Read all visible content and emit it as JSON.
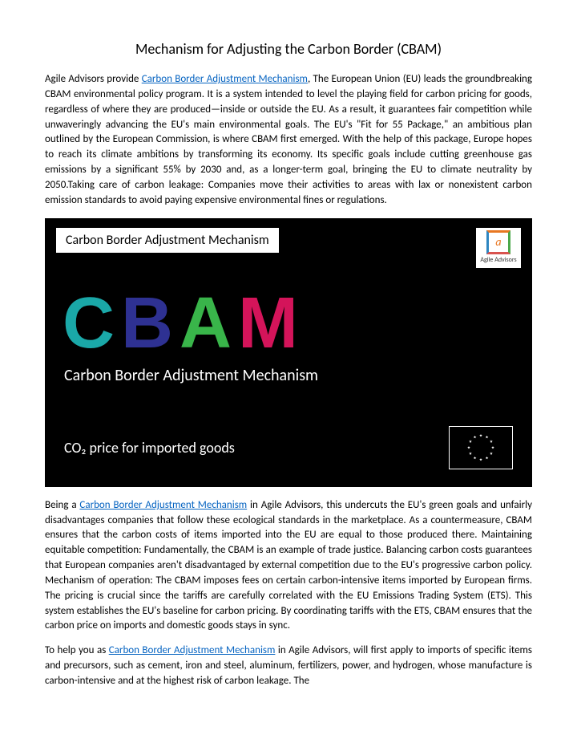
{
  "title": "Mechanism for Adjusting the Carbon Border (CBAM)",
  "link_text": "Carbon Border Adjustment Mechanism",
  "link_color": "#0563c1",
  "para1_a": "Agile Advisors provide ",
  "para1_b": ", The European Union (EU) leads the groundbreaking CBAM environmental policy program. It is a system intended to level the playing field for carbon pricing for goods, regardless of where they are produced—inside or outside the EU. As a result, it guarantees fair competition while unwaveringly advancing the EU's main environmental goals. The EU's \"Fit for 55 Package,\" an ambitious plan outlined by the European Commission, is where CBAM first emerged. With the help of this package, Europe hopes to reach its climate ambitions by transforming its economy. Its specific goals include cutting greenhouse gas emissions by a significant 55% by 2030 and, as a longer-term goal, bringing the EU to climate neutrality by 2050.Taking care of carbon leakage: Companies move their activities to areas with lax or nonexistent carbon emission standards to avoid paying expensive environmental fines or regulations.",
  "para2_a": "Being a ",
  "para2_b": " in Agile Advisors, this undercuts the EU's green goals and unfairly disadvantages companies that follow these ecological standards in the marketplace. As a countermeasure, CBAM ensures that the carbon costs of items imported into the EU are equal to those produced there. Maintaining equitable competition: Fundamentally, the CBAM is an example of trade justice. Balancing carbon costs guarantees that European companies aren't disadvantaged by external competition due to the EU's progressive carbon policy. Mechanism of operation: The CBAM imposes fees on certain carbon-intensive items imported by European firms. The pricing is crucial since the tariffs are carefully correlated with the EU Emissions Trading System (ETS). This system establishes the EU's baseline for carbon pricing. By coordinating tariffs with the ETS, CBAM ensures that the carbon price on imports and domestic goods stays in sync.",
  "para3_a": "To help you as ",
  "para3_b": " in Agile Advisors, will first apply to imports of specific items and precursors, such as cement, iron and steel, aluminum, fertilizers, power, and hydrogen, whose manufacture is carbon-intensive and at the highest risk of carbon leakage. The",
  "banner": {
    "label": "Carbon Border Adjustment Mechanism",
    "logo_caption": "Agile Advisors",
    "letters": [
      {
        "ch": "C",
        "color": "#1aa8a8"
      },
      {
        "ch": "B",
        "color": "#2e3192"
      },
      {
        "ch": "A",
        "color": "#39b54a"
      },
      {
        "ch": "M",
        "color": "#d4145a"
      }
    ],
    "subtitle": "Carbon Border Adjustment Mechanism",
    "co2": "CO₂ price for imported goods",
    "bg": "#000000",
    "fg": "#ffffff"
  }
}
